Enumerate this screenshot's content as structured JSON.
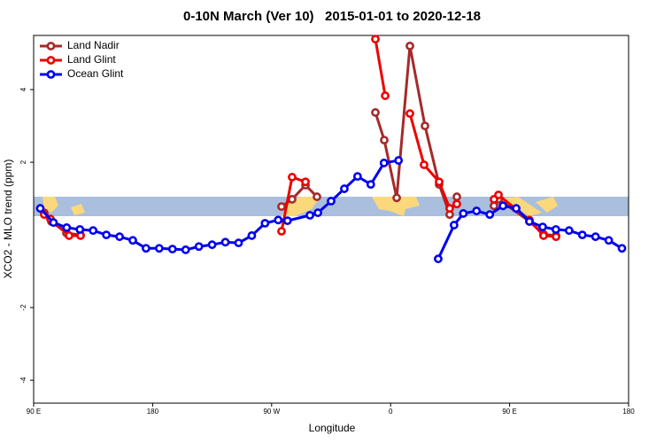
{
  "chart_data": {
    "type": "line",
    "title": "0-10N March (Ver 10)   2015-01-01 to 2020-12-18",
    "x_label": "Longitude",
    "y_label": "XCO2 - MLO trend (ppm)",
    "xlim": [
      90,
      540
    ],
    "ylim": [
      -4.63,
      5.49
    ],
    "xticks": [
      {
        "value": 90,
        "label": "90 E"
      },
      180,
      {
        "value": 270,
        "label": "90 W"
      },
      {
        "value": 360,
        "label": "0"
      },
      {
        "value": 450,
        "label": "90 E"
      },
      {
        "value": 540,
        "label": "180"
      }
    ],
    "yticks": [
      -4,
      -2,
      2,
      4
    ],
    "legend": "top-left",
    "series": [
      {
        "name": "Land Nadir",
        "color": "#a52a2a",
        "x": [
          98,
          103.4,
          114.8,
          125.5,
          null,
          277.5,
          285.5,
          295.6,
          304.3,
          null,
          348.5,
          355.2,
          364.6,
          374.6,
          386,
          396.7,
          404.7,
          410.1,
          null,
          438.2,
          441.6,
          465,
          475.7,
          485.1
        ],
        "values": [
          0.61,
          0.37,
          0.05,
          0,
          null,
          0.78,
          0.98,
          1.37,
          1.05,
          null,
          3.37,
          2.61,
          1.02,
          5.2,
          3,
          1.39,
          0.56,
          1.05,
          null,
          0.8,
          0.98,
          0.37,
          0.02,
          -0.02
        ]
      },
      {
        "name": "Land Glint",
        "color": "#ee0000",
        "x": [
          98,
          102.7,
          116.8,
          125.5,
          null,
          277.5,
          285.5,
          295.6,
          null,
          348.5,
          355.9,
          null,
          374.6,
          385.3,
          396.7,
          404.7,
          410.1,
          null,
          438.2,
          441.6,
          465,
          475.7,
          485.1
        ],
        "values": [
          0.56,
          0.44,
          -0.02,
          -0.02,
          null,
          0.1,
          1.59,
          1.46,
          null,
          5.39,
          3.83,
          null,
          3.34,
          1.93,
          1.46,
          0.73,
          0.85,
          null,
          0.98,
          1.1,
          0.41,
          -0.02,
          -0.05
        ]
      },
      {
        "name": "Ocean Glint",
        "color": "#0000ee",
        "x": [
          95,
          105,
          115,
          125,
          135,
          145,
          155,
          165,
          175,
          185,
          195,
          205,
          215,
          225,
          235,
          245,
          255,
          265,
          275,
          282,
          299,
          305,
          315,
          325,
          335,
          345,
          355,
          366,
          null,
          396,
          408,
          415,
          425,
          435,
          445,
          455,
          465,
          475,
          485,
          495,
          505,
          515,
          525,
          535
        ],
        "values": [
          0.73,
          0.34,
          0.2,
          0.15,
          0.12,
          0,
          -0.05,
          -0.15,
          -0.37,
          -0.37,
          -0.39,
          -0.41,
          -0.32,
          -0.27,
          -0.2,
          -0.22,
          -0.02,
          0.32,
          0.41,
          0.39,
          0.54,
          0.61,
          0.93,
          1.27,
          1.61,
          1.39,
          1.98,
          2.05,
          null,
          -0.66,
          0.27,
          0.59,
          0.66,
          0.56,
          0.8,
          0.73,
          0.37,
          0.22,
          0.15,
          0.12,
          0,
          -0.05,
          -0.15,
          -0.37
        ]
      }
    ]
  }
}
